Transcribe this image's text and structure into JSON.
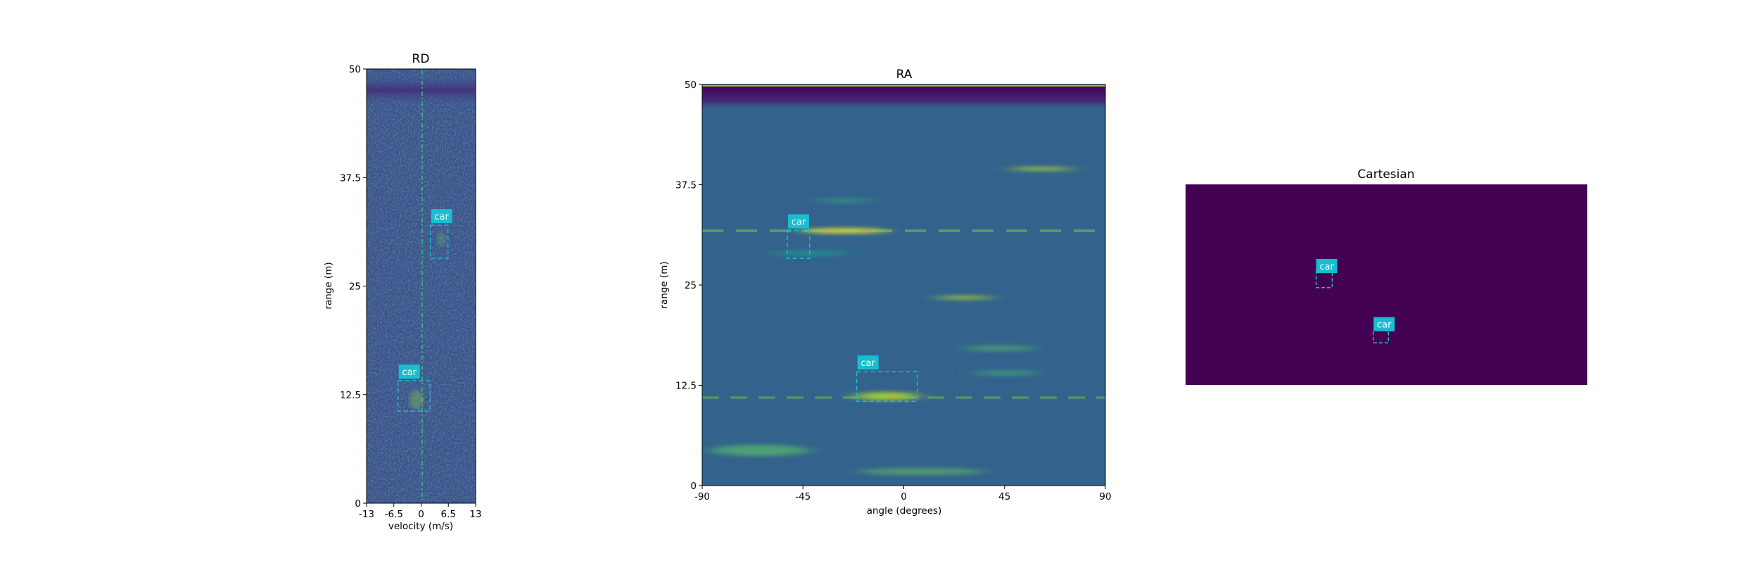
{
  "colors": {
    "box": "#17becf",
    "tag_bg": "#17becf",
    "tag_text": "#ffffff",
    "cartesian_bg": "#440154",
    "rd_bg": "#3b528b",
    "ra_bg": "#33638d"
  },
  "chart_data": [
    {
      "type": "heatmap",
      "title": "RD",
      "xlabel": "velocity (m/s)",
      "ylabel": "range (m)",
      "xlim": [
        -13,
        13
      ],
      "ylim": [
        0,
        50
      ],
      "xticks": [
        "-13",
        "-6.5",
        "0",
        "6.5",
        "13"
      ],
      "yticks": [
        "0",
        "12.5",
        "25",
        "37.5",
        "50"
      ],
      "colormap": "viridis",
      "boxes": [
        {
          "label": "car",
          "x0": 2.2,
          "x1": 6.4,
          "y0": 28.2,
          "y1": 32.0
        },
        {
          "label": "car",
          "x0": -5.5,
          "x1": 2.1,
          "y0": 10.6,
          "y1": 14.1
        }
      ]
    },
    {
      "type": "heatmap",
      "title": "RA",
      "xlabel": "angle (degrees)",
      "ylabel": "range (m)",
      "xlim": [
        -90,
        90
      ],
      "ylim": [
        0,
        50
      ],
      "xticks": [
        "-90",
        "-45",
        "0",
        "45",
        "90"
      ],
      "yticks": [
        "0",
        "12.5",
        "25",
        "37.5",
        "50"
      ],
      "colormap": "viridis",
      "boxes": [
        {
          "label": "car",
          "x0": -52,
          "x1": -42,
          "y0": 28.3,
          "y1": 31.8
        },
        {
          "label": "car",
          "x0": -21,
          "x1": 6,
          "y0": 10.5,
          "y1": 14.2
        }
      ]
    },
    {
      "type": "heatmap",
      "title": "Cartesian",
      "boxes": [
        {
          "label": "car",
          "fx0": 0.325,
          "fx1": 0.365,
          "fy0": 0.435,
          "fy1": 0.515
        },
        {
          "label": "car",
          "fx0": 0.468,
          "fx1": 0.505,
          "fy0": 0.725,
          "fy1": 0.79
        }
      ]
    }
  ]
}
